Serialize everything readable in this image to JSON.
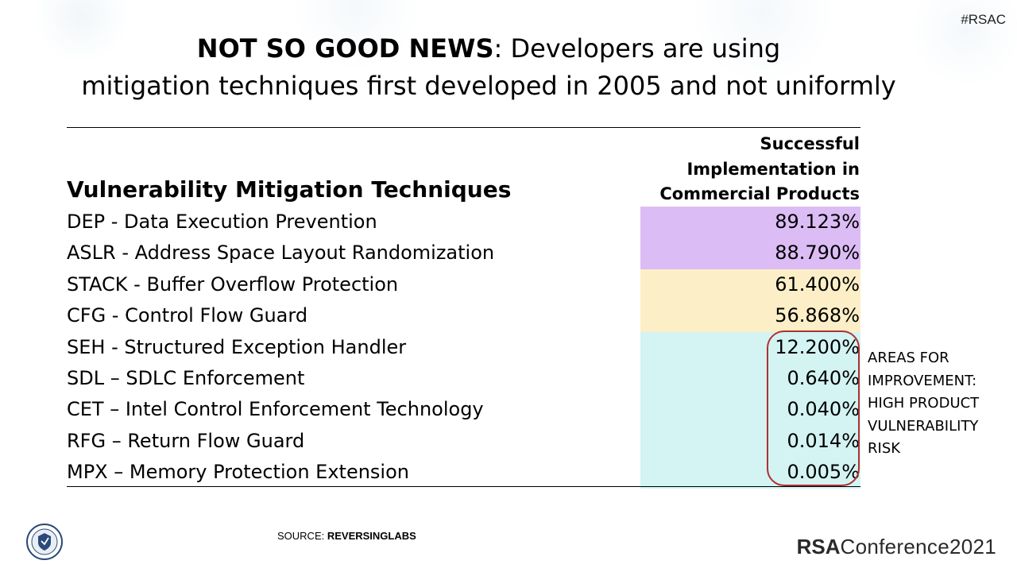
{
  "hashtag": "#RSAC",
  "title": {
    "bold": "NOT SO GOOD NEWS",
    "rest_line1": ": Developers are using",
    "line2": "mitigation techniques first developed in 2005 and not uniformly"
  },
  "table": {
    "tech_header": "Vulnerability Mitigation Techniques",
    "col_header_lines": [
      "Successful",
      "Implementation in",
      "Commercial Products"
    ],
    "rows": [
      {
        "label": "DEP - Data Execution Prevention",
        "value": "89.123%",
        "bg": "#dcbcf5"
      },
      {
        "label": "ASLR - Address Space Layout Randomization",
        "value": "88.790%",
        "bg": "#dcbcf5"
      },
      {
        "label": "STACK - Buffer Overflow Protection",
        "value": "61.400%",
        "bg": "#fcefc7"
      },
      {
        "label": "CFG - Control Flow Guard",
        "value": "56.868%",
        "bg": "#fcefc7"
      },
      {
        "label": "SEH - Structured Exception Handler",
        "value": "12.200%",
        "bg": "#d4f3f3"
      },
      {
        "label": "SDL – SDLC Enforcement",
        "value": "0.640%",
        "bg": "#d4f3f3"
      },
      {
        "label": "CET – Intel Control Enforcement Technology",
        "value": "0.040%",
        "bg": "#d4f3f3"
      },
      {
        "label": "RFG – Return Flow Guard",
        "value": "0.014%",
        "bg": "#d4f3f3"
      },
      {
        "label": "MPX – Memory Protection Extension",
        "value": "0.005%",
        "bg": "#d4f3f3"
      }
    ]
  },
  "annotation": {
    "lines": [
      "AREAS FOR",
      "IMPROVEMENT:",
      "HIGH PRODUCT",
      "VULNERABILITY",
      "RISK"
    ],
    "box_color": "#b03030"
  },
  "source": {
    "prefix": "SOURCE: ",
    "name": "REVERSINGLABS"
  },
  "logo": {
    "rsa": "RSA",
    "rest": "Conference2021"
  },
  "seal_icon": "cisa-seal-icon"
}
